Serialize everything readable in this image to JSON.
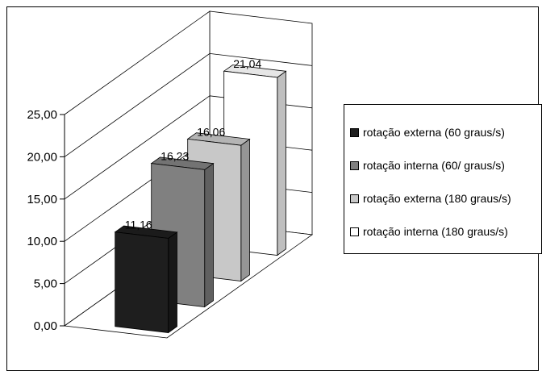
{
  "chart_data": {
    "type": "bar",
    "title": "",
    "xlabel": "",
    "ylabel": "",
    "ylim": [
      0,
      25
    ],
    "yticks": [
      "0,00",
      "5,00",
      "10,00",
      "15,00",
      "20,00",
      "25,00"
    ],
    "grid": true,
    "legend_position": "right",
    "style": "3d-column",
    "series": [
      {
        "name": "rotação externa (60 graus/s)",
        "value": 11.16,
        "label": "11,16",
        "color": "#1e1e1e"
      },
      {
        "name": "rotação interna (60/ graus/s)",
        "value": 16.23,
        "label": "16,23",
        "color": "#808080"
      },
      {
        "name": "rotação externa (180 graus/s)",
        "value": 16.06,
        "label": "16,06",
        "color": "#c8c8c8"
      },
      {
        "name": "rotação interna (180 graus/s)",
        "value": 21.04,
        "label": "21,04",
        "color": "#ffffff"
      }
    ]
  }
}
